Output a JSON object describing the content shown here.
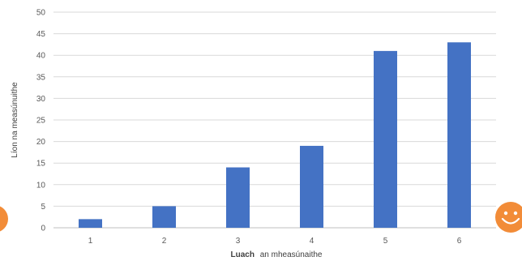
{
  "chart_data": {
    "type": "bar",
    "categories": [
      "1",
      "2",
      "3",
      "4",
      "5",
      "6"
    ],
    "values": [
      2,
      5,
      14,
      19,
      41,
      43
    ],
    "xlabel_bold": "Luach",
    "xlabel_rest": "an mheasúnaithe",
    "ylabel": "Líon na measúnuithe",
    "ylim": [
      0,
      50
    ],
    "yticks": [
      0,
      5,
      10,
      15,
      20,
      25,
      30,
      35,
      40,
      45,
      50
    ],
    "grid": true,
    "legend": "none",
    "bar_color": "#4472C4"
  },
  "decorations": {
    "smiley_color": "#F28C38",
    "left_icon": "smiley-icon",
    "right_icon": "smiley-icon"
  }
}
